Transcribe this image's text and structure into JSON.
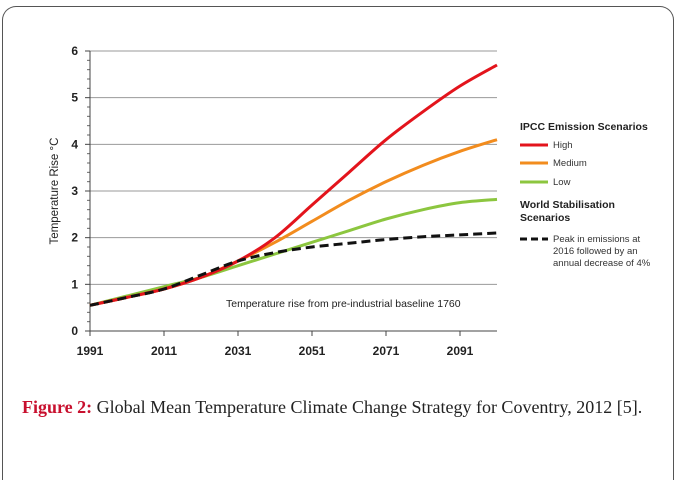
{
  "caption": {
    "label": "Figure 2:",
    "text": " Global Mean Temperature Climate Change Strategy for Coventry, 2012 [5]."
  },
  "chart_data": {
    "type": "line",
    "ylabel": "Temperature Rise °C",
    "xlabel": "",
    "xlim": [
      1991,
      2101
    ],
    "ylim": [
      0,
      6
    ],
    "x_ticks": [
      "1991",
      "2011",
      "2031",
      "2051",
      "2071",
      "2091"
    ],
    "y_ticks": [
      "0",
      "1",
      "2",
      "3",
      "4",
      "5",
      "6"
    ],
    "grid": "horizontal",
    "annotation": "Temperature rise from pre-industrial baseline 1760",
    "legend_position": "right",
    "legend": {
      "group1_title": "IPCC Emission Scenarios",
      "group2_title": "World Stabilisation Scenarios",
      "group2_lines": [
        "World Stabilisation",
        "Scenarios"
      ],
      "dashed_label_lines": [
        "Peak in emissions at",
        "2016 followed by an",
        "annual decrease of 4%"
      ]
    },
    "series": [
      {
        "name": "High",
        "color": "#e3141c",
        "dash": false,
        "x": [
          1991,
          2001,
          2011,
          2021,
          2031,
          2041,
          2051,
          2061,
          2071,
          2081,
          2091,
          2101
        ],
        "y": [
          0.55,
          0.72,
          0.9,
          1.15,
          1.5,
          2.0,
          2.7,
          3.4,
          4.1,
          4.7,
          5.25,
          5.7
        ]
      },
      {
        "name": "Medium",
        "color": "#f28c1e",
        "dash": false,
        "x": [
          1991,
          2001,
          2011,
          2021,
          2031,
          2041,
          2051,
          2061,
          2071,
          2081,
          2091,
          2101
        ],
        "y": [
          0.55,
          0.72,
          0.9,
          1.15,
          1.5,
          1.9,
          2.35,
          2.8,
          3.2,
          3.55,
          3.85,
          4.1
        ]
      },
      {
        "name": "Low",
        "color": "#8cc63f",
        "dash": false,
        "x": [
          1991,
          2001,
          2011,
          2021,
          2031,
          2041,
          2051,
          2061,
          2071,
          2081,
          2091,
          2101
        ],
        "y": [
          0.55,
          0.75,
          0.95,
          1.15,
          1.4,
          1.65,
          1.9,
          2.15,
          2.4,
          2.6,
          2.75,
          2.82
        ]
      },
      {
        "name": "Peak in emissions at 2016 followed by an annual decrease of 4%",
        "color": "#111111",
        "dash": true,
        "x": [
          1991,
          2001,
          2011,
          2021,
          2031,
          2041,
          2051,
          2061,
          2071,
          2081,
          2091,
          2101
        ],
        "y": [
          0.55,
          0.72,
          0.9,
          1.2,
          1.5,
          1.68,
          1.8,
          1.88,
          1.96,
          2.02,
          2.06,
          2.1
        ]
      }
    ]
  }
}
